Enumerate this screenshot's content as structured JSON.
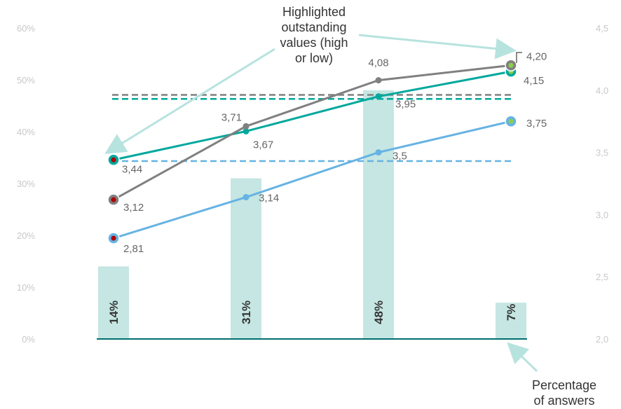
{
  "chart_data": {
    "type": "bar+line",
    "categories": [
      "",
      "",
      "",
      ""
    ],
    "bars": {
      "name": "Percentage of answers",
      "values": [
        14,
        31,
        48,
        7
      ],
      "labels": [
        "14%",
        "31%",
        "48%",
        "7%"
      ],
      "color": "#c5e6e2",
      "axis": "left"
    },
    "left_axis": {
      "ylim": [
        0,
        60
      ],
      "ticks": [
        "0%",
        "10%",
        "20%",
        "30%",
        "40%",
        "50%",
        "60%"
      ]
    },
    "right_axis": {
      "ylim": [
        2.0,
        4.5
      ],
      "ticks": [
        "2,0",
        "2,5",
        "3,0",
        "3,5",
        "4,0",
        "4,5"
      ]
    },
    "series": [
      {
        "color": "#00a89d",
        "values": [
          3.44,
          3.67,
          3.95,
          4.15
        ],
        "labels": [
          "3,44",
          "3,67",
          "3,95",
          "4,15"
        ],
        "average": 3.93,
        "highlight": [
          0,
          3
        ]
      },
      {
        "color": "#808080",
        "values": [
          3.12,
          3.71,
          4.08,
          4.2
        ],
        "labels": [
          "3,12",
          "3,71",
          "4,08",
          "4,20"
        ],
        "average": 3.94,
        "highlight": [
          0,
          3
        ]
      },
      {
        "color": "#66b3e3",
        "values": [
          2.81,
          3.14,
          3.5,
          3.75
        ],
        "labels": [
          "2,81",
          "3,14",
          "3,5",
          "3,75"
        ],
        "average": 3.43,
        "highlight": [
          0,
          3
        ]
      }
    ],
    "highlight_colors": {
      "low": "#b00000",
      "high": "#8ccf4d"
    },
    "annotations": {
      "highlighted": [
        "Highlighted",
        "outstanding",
        "values (high",
        "or low)"
      ],
      "percentage": [
        "Percentage",
        "of answers"
      ]
    },
    "colors": {
      "arrow": "#b7e3df",
      "axis_line": "#006e6e"
    }
  }
}
